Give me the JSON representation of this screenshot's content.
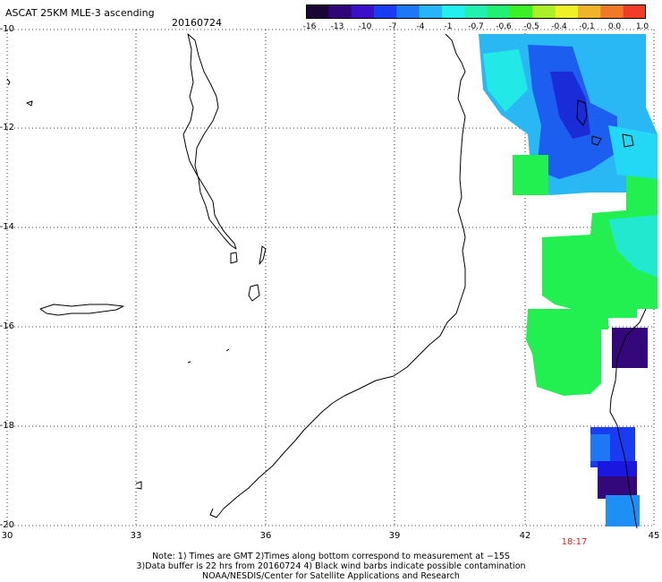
{
  "header": {
    "title": "ASCAT 25KM MLE-3 ascending",
    "date": "20160724"
  },
  "colorbar": {
    "labels": [
      "-16",
      "-13",
      "-10",
      "-7",
      "-4",
      "-1",
      "-0.7",
      "-0.6",
      "-0.5",
      "-0.4",
      "-0.1",
      "0.0",
      "1.0"
    ],
    "colors": [
      "#1b0536",
      "#30057a",
      "#3a10c8",
      "#1a3cf0",
      "#1e78f5",
      "#26b6f7",
      "#22f0f0",
      "#22f0b0",
      "#22f070",
      "#3cf028",
      "#aaf028",
      "#f0f028",
      "#f0b428",
      "#f07828",
      "#f03c28"
    ]
  },
  "axes": {
    "lat_labels": [
      "-10",
      "-12",
      "-14",
      "-16",
      "-18",
      "-20"
    ],
    "lon_labels": [
      "30",
      "33",
      "36",
      "39",
      "42",
      "45"
    ]
  },
  "pass_time": "18:17",
  "notes": [
    "Note: 1) Times are GMT 2)Times along bottom correspond to measurement at −15S",
    "3)Data buffer is 22 hrs from 20160724 4) Black wind barbs indicate possible contamination",
    "NOAA/NESDIS/Center for Satellite Applications and Research"
  ]
}
